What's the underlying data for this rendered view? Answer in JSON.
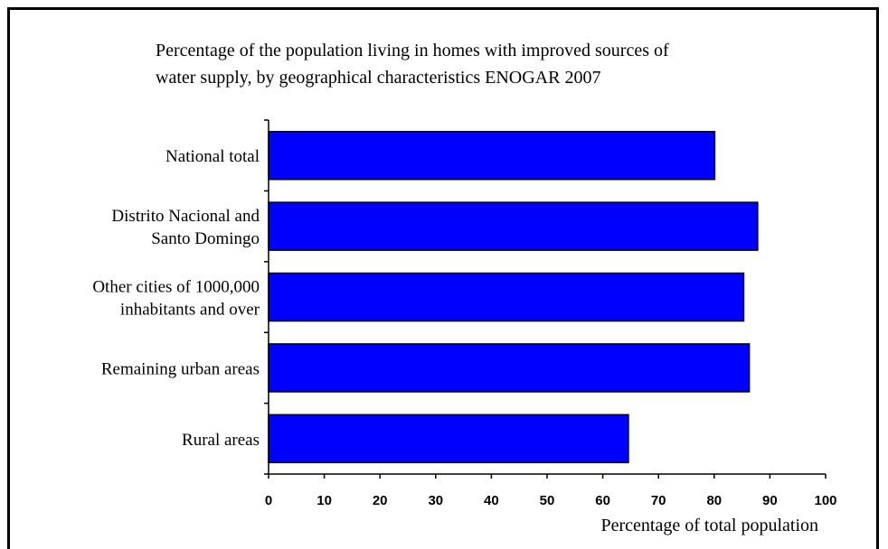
{
  "chart_data": {
    "type": "bar",
    "orientation": "horizontal",
    "title_lines": [
      "Percentage of the population living in homes with improved sources of",
      "water supply, by geographical characteristics ENOGAR 2007"
    ],
    "categories": [
      [
        "National total"
      ],
      [
        "Distrito Nacional and",
        "Santo Domingo"
      ],
      [
        "Other cities of 1000,000",
        "inhabitants and over"
      ],
      [
        "Remaining urban areas"
      ],
      [
        "Rural areas"
      ]
    ],
    "values": [
      80.1,
      87.8,
      85.3,
      86.3,
      64.6
    ],
    "xlim": [
      0,
      100
    ],
    "xticks": [
      0,
      10,
      20,
      30,
      40,
      50,
      60,
      70,
      80,
      90,
      100
    ],
    "xlabel": "Percentage of total population",
    "ylabel": "",
    "grid": false,
    "legend": "none"
  },
  "colors": {
    "bar_fill": "#0000ff",
    "bar_stroke": "#000000",
    "axis": "#000000",
    "frame": "#000000",
    "background": "#ffffff"
  }
}
